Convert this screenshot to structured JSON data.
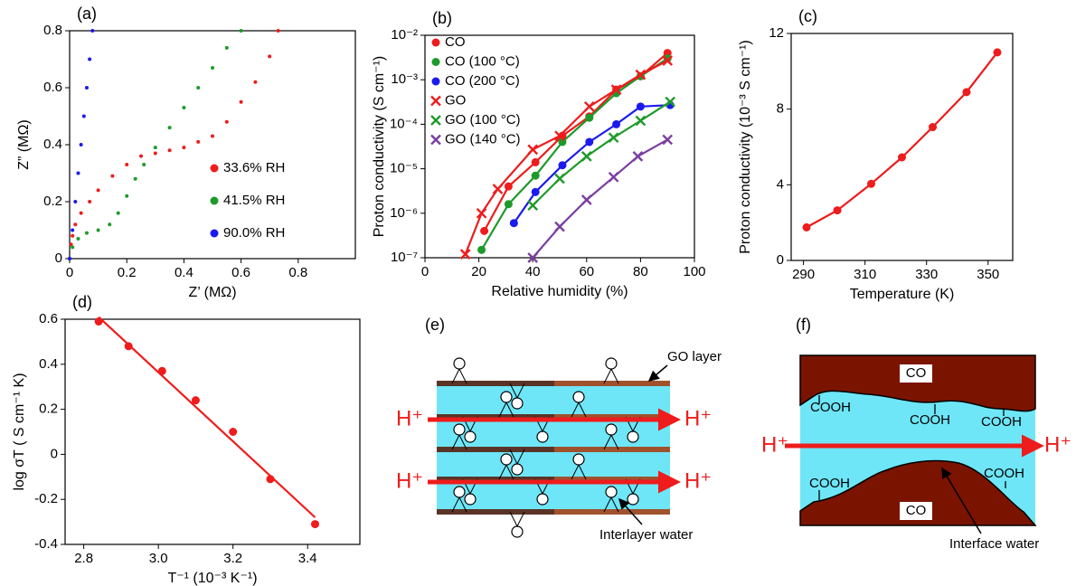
{
  "chart_data": [
    {
      "type": "scatter",
      "label": "(a)",
      "xlabel": "Z’ (MΩ)",
      "ylabel": "Z” (MΩ)",
      "xlim": [
        0,
        1.0
      ],
      "ylim": [
        0,
        0.8
      ],
      "xticks": [
        0,
        0.2,
        0.4,
        0.6,
        0.8
      ],
      "yticks": [
        0,
        0.2,
        0.4,
        0.6,
        0.8
      ],
      "legend": "right",
      "series": [
        {
          "name": "33.6% RH",
          "color": "#ee1c1c",
          "marker": "dot",
          "line": false,
          "x": [
            0,
            0.005,
            0.01,
            0.02,
            0.04,
            0.07,
            0.1,
            0.15,
            0.2,
            0.25,
            0.3,
            0.35,
            0.4,
            0.45,
            0.5,
            0.55,
            0.6,
            0.65,
            0.7,
            0.73
          ],
          "values": [
            0,
            0.05,
            0.08,
            0.12,
            0.16,
            0.2,
            0.24,
            0.29,
            0.33,
            0.36,
            0.37,
            0.38,
            0.39,
            0.41,
            0.43,
            0.48,
            0.55,
            0.62,
            0.71,
            0.8
          ]
        },
        {
          "name": "41.5% RH",
          "color": "#1e9a2a",
          "marker": "dot",
          "line": false,
          "x": [
            0,
            0.01,
            0.03,
            0.06,
            0.1,
            0.14,
            0.17,
            0.2,
            0.23,
            0.26,
            0.3,
            0.35,
            0.4,
            0.45,
            0.5,
            0.55,
            0.6
          ],
          "values": [
            0,
            0.04,
            0.07,
            0.09,
            0.1,
            0.12,
            0.16,
            0.22,
            0.28,
            0.33,
            0.39,
            0.46,
            0.53,
            0.6,
            0.67,
            0.74,
            0.8
          ]
        },
        {
          "name": "90.0% RH",
          "color": "#1a1aee",
          "marker": "dot",
          "line": false,
          "x": [
            0,
            0.01,
            0.02,
            0.03,
            0.04,
            0.05,
            0.06,
            0.07,
            0.08
          ],
          "values": [
            0,
            0.1,
            0.2,
            0.3,
            0.4,
            0.5,
            0.6,
            0.7,
            0.8
          ]
        }
      ]
    },
    {
      "type": "scatter",
      "label": "(b)",
      "xlabel": "Relative humidity (%)",
      "ylabel": "Proton conductivity (S cm⁻¹)",
      "xlim": [
        0,
        100
      ],
      "ylim": [
        1e-07,
        0.01
      ],
      "ylog": true,
      "xticks": [
        0,
        20,
        40,
        60,
        80,
        100
      ],
      "yticks": [
        {
          "value": 1e-07,
          "label": "10⁻⁷"
        },
        {
          "value": 1e-06,
          "label": "10⁻⁶"
        },
        {
          "value": 1e-05,
          "label": "10⁻⁵"
        },
        {
          "value": 0.0001,
          "label": "10⁻⁴"
        },
        {
          "value": 0.001,
          "label": "10⁻³"
        },
        {
          "value": 0.01,
          "label": "10⁻²"
        }
      ],
      "legend": "upper left",
      "series": [
        {
          "name": "CO",
          "color": "#ee1c1c",
          "marker": "circle",
          "line": true,
          "x": [
            22,
            31,
            41,
            51,
            61,
            71,
            80,
            90
          ],
          "values": [
            4e-07,
            4e-06,
            1.4e-05,
            5.5e-05,
            0.00015,
            0.0006,
            0.0012,
            0.004
          ]
        },
        {
          "name": "CO (100 °C)",
          "color": "#1e9a2a",
          "marker": "circle",
          "line": true,
          "x": [
            21,
            31,
            41,
            51,
            61,
            71,
            80,
            90
          ],
          "values": [
            1.5e-07,
            1.6e-06,
            7e-06,
            4e-05,
            0.00014,
            0.0005,
            0.0012,
            0.003
          ]
        },
        {
          "name": "CO (200 °C)",
          "color": "#1a1aee",
          "marker": "circle",
          "line": true,
          "x": [
            33,
            41,
            51,
            61,
            71,
            80,
            91
          ],
          "values": [
            6e-07,
            3e-06,
            1.2e-05,
            4e-05,
            0.0001,
            0.00025,
            0.00027
          ]
        },
        {
          "name": "GO",
          "color": "#ee1c1c",
          "marker": "cross",
          "line": true,
          "x": [
            15,
            21,
            27,
            40,
            50,
            61,
            71,
            80,
            90
          ],
          "values": [
            1.2e-07,
            1e-06,
            3.5e-06,
            2.7e-05,
            5.5e-05,
            0.00025,
            0.0006,
            0.0013,
            0.0027
          ]
        },
        {
          "name": "GO (100 °C)",
          "color": "#1e9a2a",
          "marker": "cross",
          "line": true,
          "x": [
            40,
            50,
            60,
            70,
            80,
            91
          ],
          "values": [
            1.5e-06,
            6e-06,
            1.9e-05,
            5e-05,
            0.00012,
            0.00032
          ]
        },
        {
          "name": "GO (140 °C)",
          "color": "#7a3fa0",
          "marker": "cross",
          "line": true,
          "x": [
            40,
            50,
            60,
            70,
            79,
            90
          ],
          "values": [
            1e-07,
            5e-07,
            2e-06,
            6.5e-06,
            1.9e-05,
            4.5e-05
          ]
        }
      ]
    },
    {
      "type": "scatter",
      "label": "(c)",
      "xlabel": "Temperature (K)",
      "ylabel": "Proton conductivity (10⁻³ S cm⁻¹)",
      "xlim": [
        286,
        358
      ],
      "ylim": [
        0,
        12
      ],
      "xticks": [
        290,
        310,
        330,
        350
      ],
      "yticks": [
        0,
        4,
        8,
        12
      ],
      "series": [
        {
          "color": "#ee1c1c",
          "marker": "circle",
          "line": true,
          "x": [
            291,
            301,
            312,
            322,
            332,
            343,
            353
          ],
          "values": [
            1.75,
            2.65,
            4.05,
            5.45,
            7.05,
            8.9,
            11.0
          ]
        }
      ]
    },
    {
      "type": "scatter",
      "label": "(d)",
      "xlabel": "T⁻¹ (10⁻³ K⁻¹)",
      "ylabel": "log σT ( S cm⁻¹ K)",
      "xlim": [
        2.75,
        3.54
      ],
      "ylim": [
        -0.4,
        0.6
      ],
      "xticks": [
        2.8,
        {
          "value": 3,
          "label": "3.0"
        },
        3.2,
        3.4
      ],
      "yticks": [
        -0.4,
        -0.2,
        0,
        0.2,
        0.4,
        0.6
      ],
      "series": [
        {
          "color": "#ee1c1c",
          "marker": "circle",
          "line": false,
          "x": [
            2.84,
            2.92,
            3.01,
            3.1,
            3.2,
            3.3,
            3.42
          ],
          "values": [
            0.59,
            0.48,
            0.37,
            0.24,
            0.1,
            -0.11,
            -0.31
          ]
        },
        {
          "color": "#ee1c1c",
          "marker": "none",
          "line": true,
          "x": [
            2.84,
            3.42
          ],
          "values": [
            0.61,
            -0.28
          ]
        }
      ]
    }
  ],
  "diagrams": {
    "e": {
      "label": "(e)",
      "layer_label": "GO layer",
      "water_label": "Interlayer water",
      "protons": [
        "H⁺",
        "H⁺",
        "H⁺",
        "H⁺"
      ]
    },
    "f": {
      "label": "(f)",
      "top_label": "CO",
      "bottom_label": "CO",
      "groups": [
        "COOH",
        "COOH",
        "COOH",
        "COOH",
        "COOH"
      ],
      "water_label": "Interface water",
      "protons": [
        "H⁺",
        "H⁺"
      ]
    }
  }
}
